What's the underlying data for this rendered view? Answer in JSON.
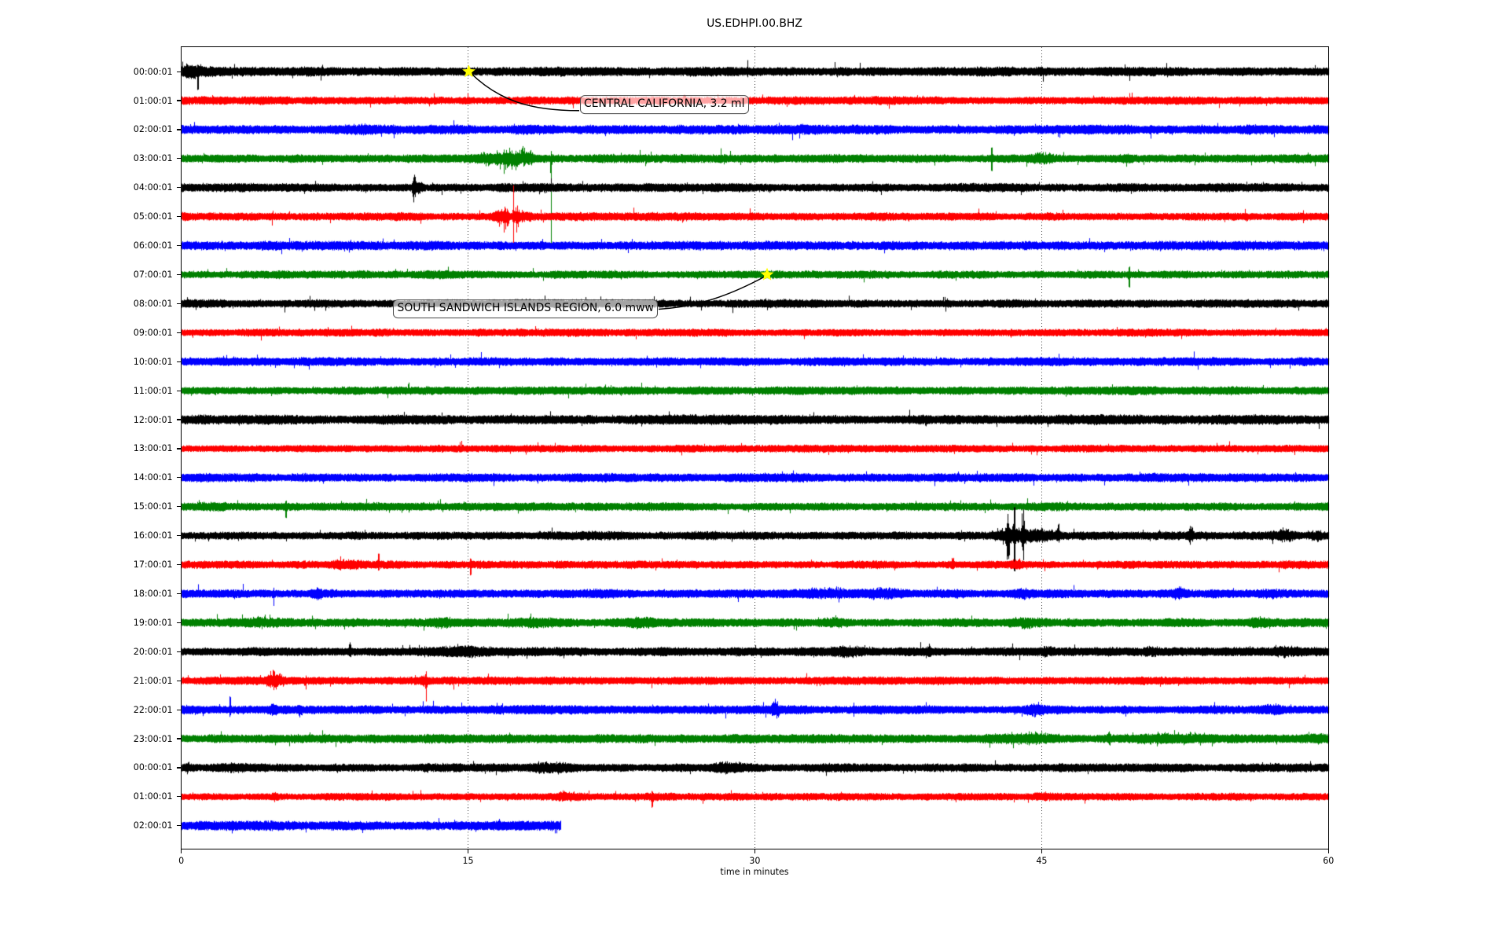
{
  "title": "US.EDHPI.00.BHZ",
  "x_axis": {
    "label": "time in minutes",
    "range_minutes": [
      0,
      60
    ],
    "ticks": [
      0,
      15,
      30,
      45,
      60
    ],
    "grid_minutes": [
      15,
      30,
      45
    ]
  },
  "y_axis": {
    "tick_labels": [
      "00:00:01",
      "01:00:01",
      "02:00:01",
      "03:00:01",
      "04:00:01",
      "05:00:01",
      "06:00:01",
      "07:00:01",
      "08:00:01",
      "09:00:01",
      "10:00:01",
      "11:00:01",
      "12:00:01",
      "13:00:01",
      "14:00:01",
      "15:00:01",
      "16:00:01",
      "17:00:01",
      "18:00:01",
      "19:00:01",
      "20:00:01",
      "21:00:01",
      "22:00:01",
      "23:00:01",
      "00:00:01",
      "01:00:01",
      "02:00:01"
    ]
  },
  "colors": {
    "trace_cycle": [
      "#000000",
      "#ff0000",
      "#0000ff",
      "#008000"
    ],
    "event_star": "#ffff00",
    "grid": "#4d4d4d",
    "frame": "#000000"
  },
  "chart_data": {
    "type": "line",
    "variant": "seismogram-dayplot-helicorder",
    "station_id": "US.EDHPI.00.BHZ",
    "title": "US.EDHPI.00.BHZ",
    "xlabel": "time in minutes",
    "minutes_per_row": 60,
    "xlim": [
      0,
      60
    ],
    "grid": "vertical-dotted",
    "rows": [
      {
        "label": "00:00:01",
        "color": "#000000",
        "extent": 1.0,
        "base_amp": 4.6,
        "events": [
          {
            "t": 0.4,
            "w": 0.5,
            "up": 5,
            "dn": 5
          },
          {
            "t": 0.85,
            "w": 0.02,
            "up": 2,
            "dn": 16
          },
          {
            "t": 29.6,
            "w": 0.02,
            "up": 9,
            "dn": 2
          }
        ]
      },
      {
        "label": "01:00:01",
        "color": "#ff0000",
        "extent": 1.0,
        "base_amp": 4.0,
        "events": [
          {
            "t": 26.3,
            "w": 0.05,
            "up": 6,
            "dn": 2
          }
        ]
      },
      {
        "label": "02:00:01",
        "color": "#0000ff",
        "extent": 1.0,
        "base_amp": 4.6,
        "events": [
          {
            "t": 9.5,
            "w": 1.2,
            "up": 2,
            "dn": 2
          },
          {
            "t": 33.0,
            "w": 0.8,
            "up": 1.5,
            "dn": 1.5
          }
        ]
      },
      {
        "label": "03:00:01",
        "color": "#008000",
        "extent": 1.0,
        "base_amp": 4.2,
        "events": [
          {
            "t": 15.9,
            "w": 0.28,
            "up": 5,
            "dn": 6
          },
          {
            "t": 16.55,
            "w": 0.1,
            "up": 8,
            "dn": 9
          },
          {
            "t": 16.85,
            "w": 0.04,
            "up": 5,
            "dn": 14
          },
          {
            "t": 17.15,
            "w": 0.2,
            "up": 9,
            "dn": 11
          },
          {
            "t": 17.5,
            "w": 0.05,
            "up": 6,
            "dn": 13
          },
          {
            "t": 17.85,
            "w": 0.15,
            "up": 10,
            "dn": 7
          },
          {
            "t": 18.25,
            "w": 0.1,
            "up": 9,
            "dn": 5
          },
          {
            "t": 19.32,
            "w": 0.018,
            "up": 5,
            "dn": 104
          },
          {
            "t": 42.35,
            "w": 0.04,
            "up": 10,
            "dn": 12
          },
          {
            "t": 45.0,
            "w": 0.4,
            "up": 5,
            "dn": 4
          },
          {
            "t": 49.4,
            "w": 0.25,
            "up": 3,
            "dn": 3
          }
        ]
      },
      {
        "label": "04:00:01",
        "color": "#000000",
        "extent": 1.0,
        "base_amp": 4.3,
        "events": [
          {
            "t": 12.15,
            "w": 0.06,
            "up": 16,
            "dn": 17
          },
          {
            "t": 12.4,
            "w": 0.15,
            "up": 5,
            "dn": 4
          }
        ]
      },
      {
        "label": "05:00:01",
        "color": "#ff0000",
        "extent": 1.0,
        "base_amp": 4.0,
        "events": [
          {
            "t": 16.55,
            "w": 0.18,
            "up": 7,
            "dn": 9
          },
          {
            "t": 16.95,
            "w": 0.1,
            "up": 11,
            "dn": 13
          },
          {
            "t": 17.35,
            "w": 0.04,
            "up": 34,
            "dn": 28
          },
          {
            "t": 17.55,
            "w": 0.1,
            "up": 12,
            "dn": 14
          },
          {
            "t": 17.95,
            "w": 0.25,
            "up": 5,
            "dn": 4
          }
        ]
      },
      {
        "label": "06:00:01",
        "color": "#0000ff",
        "extent": 1.0,
        "base_amp": 4.4,
        "events": []
      },
      {
        "label": "07:00:01",
        "color": "#008000",
        "extent": 1.0,
        "base_amp": 3.9,
        "events": [
          {
            "t": 49.55,
            "w": 0.03,
            "up": 6,
            "dn": 12
          }
        ]
      },
      {
        "label": "08:00:01",
        "color": "#000000",
        "extent": 1.0,
        "base_amp": 4.1,
        "events": []
      },
      {
        "label": "09:00:01",
        "color": "#ff0000",
        "extent": 1.0,
        "base_amp": 3.8,
        "events": []
      },
      {
        "label": "10:00:01",
        "color": "#0000ff",
        "extent": 1.0,
        "base_amp": 4.2,
        "events": []
      },
      {
        "label": "11:00:01",
        "color": "#008000",
        "extent": 1.0,
        "base_amp": 4.1,
        "events": []
      },
      {
        "label": "12:00:01",
        "color": "#000000",
        "extent": 1.0,
        "base_amp": 4.8,
        "events": []
      },
      {
        "label": "13:00:01",
        "color": "#ff0000",
        "extent": 1.0,
        "base_amp": 3.7,
        "events": []
      },
      {
        "label": "14:00:01",
        "color": "#0000ff",
        "extent": 1.0,
        "base_amp": 4.3,
        "events": []
      },
      {
        "label": "15:00:01",
        "color": "#008000",
        "extent": 1.0,
        "base_amp": 4.1,
        "events": [
          {
            "t": 5.45,
            "w": 0.03,
            "up": 3,
            "dn": 10
          },
          {
            "t": 1.2,
            "w": 0.8,
            "up": 1.5,
            "dn": 1.5
          }
        ]
      },
      {
        "label": "16:00:01",
        "color": "#000000",
        "extent": 1.0,
        "base_amp": 4.2,
        "events": [
          {
            "t": 43.2,
            "w": 0.05,
            "up": 38,
            "dn": 44
          },
          {
            "t": 43.55,
            "w": 0.04,
            "up": 30,
            "dn": 34
          },
          {
            "t": 44.0,
            "w": 0.05,
            "up": 34,
            "dn": 40
          },
          {
            "t": 43.6,
            "w": 0.7,
            "up": 7,
            "dn": 7
          },
          {
            "t": 45.0,
            "w": 0.45,
            "up": 5,
            "dn": 4
          },
          {
            "t": 45.85,
            "w": 0.05,
            "up": 18,
            "dn": 8
          },
          {
            "t": 52.8,
            "w": 0.1,
            "up": 10,
            "dn": 9
          },
          {
            "t": 57.6,
            "w": 0.35,
            "up": 6,
            "dn": 5
          },
          {
            "t": 59.3,
            "w": 0.3,
            "up": 4,
            "dn": 4
          }
        ]
      },
      {
        "label": "17:00:01",
        "color": "#ff0000",
        "extent": 1.0,
        "base_amp": 3.9,
        "events": [
          {
            "t": 8.6,
            "w": 0.5,
            "up": 4,
            "dn": 3
          },
          {
            "t": 10.3,
            "w": 0.04,
            "up": 9,
            "dn": 3
          },
          {
            "t": 15.1,
            "w": 0.04,
            "up": 3,
            "dn": 9
          },
          {
            "t": 40.3,
            "w": 0.05,
            "up": 12,
            "dn": 4
          },
          {
            "t": 43.7,
            "w": 0.2,
            "up": 4,
            "dn": 3
          }
        ]
      },
      {
        "label": "18:00:01",
        "color": "#0000ff",
        "extent": 1.0,
        "base_amp": 4.3,
        "events": [
          {
            "t": 4.8,
            "w": 0.04,
            "up": 4,
            "dn": 11
          },
          {
            "t": 7.1,
            "w": 0.2,
            "up": 5,
            "dn": 4
          },
          {
            "t": 33.7,
            "w": 0.9,
            "up": 4,
            "dn": 3
          },
          {
            "t": 36.6,
            "w": 0.8,
            "up": 4,
            "dn": 3
          },
          {
            "t": 44.0,
            "w": 0.3,
            "up": 3,
            "dn": 3
          },
          {
            "t": 52.2,
            "w": 0.25,
            "up": 6,
            "dn": 4
          },
          {
            "t": 57.0,
            "w": 0.8,
            "up": 2.5,
            "dn": 2
          }
        ]
      },
      {
        "label": "19:00:01",
        "color": "#008000",
        "extent": 1.0,
        "base_amp": 4.4,
        "events": [
          {
            "t": 4.3,
            "w": 0.9,
            "up": 4,
            "dn": 3
          },
          {
            "t": 13.6,
            "w": 0.4,
            "up": 3,
            "dn": 3
          },
          {
            "t": 18.8,
            "w": 0.7,
            "up": 3,
            "dn": 2.5
          },
          {
            "t": 24.0,
            "w": 0.6,
            "up": 3,
            "dn": 3
          },
          {
            "t": 34.2,
            "w": 0.4,
            "up": 3,
            "dn": 2.5
          },
          {
            "t": 44.1,
            "w": 0.5,
            "up": 3.5,
            "dn": 3
          },
          {
            "t": 56.4,
            "w": 0.4,
            "up": 3,
            "dn": 2.5
          }
        ]
      },
      {
        "label": "20:00:01",
        "color": "#000000",
        "extent": 1.0,
        "base_amp": 4.4,
        "events": [
          {
            "t": 8.8,
            "w": 0.05,
            "up": 8,
            "dn": 3
          },
          {
            "t": 14.6,
            "w": 1.0,
            "up": 4,
            "dn": 3.5
          },
          {
            "t": 35.0,
            "w": 0.8,
            "up": 3.5,
            "dn": 3
          },
          {
            "t": 39.1,
            "w": 0.05,
            "up": 7,
            "dn": 3
          },
          {
            "t": 45.2,
            "w": 0.3,
            "up": 4,
            "dn": 3.5
          },
          {
            "t": 50.6,
            "w": 0.4,
            "up": 3,
            "dn": 3
          },
          {
            "t": 57.7,
            "w": 0.5,
            "up": 4,
            "dn": 3
          }
        ]
      },
      {
        "label": "21:00:01",
        "color": "#ff0000",
        "extent": 1.0,
        "base_amp": 3.9,
        "events": [
          {
            "t": 4.85,
            "w": 0.25,
            "up": 10,
            "dn": 9
          },
          {
            "t": 6.5,
            "w": 0.04,
            "up": 3,
            "dn": 8
          },
          {
            "t": 12.7,
            "w": 0.1,
            "up": 6,
            "dn": 8
          },
          {
            "t": 12.78,
            "w": 0.02,
            "up": 3,
            "dn": 18
          }
        ]
      },
      {
        "label": "22:00:01",
        "color": "#0000ff",
        "extent": 1.0,
        "base_amp": 4.3,
        "events": [
          {
            "t": 2.53,
            "w": 0.025,
            "up": 13,
            "dn": 4
          },
          {
            "t": 4.8,
            "w": 0.12,
            "up": 5,
            "dn": 7
          },
          {
            "t": 6.2,
            "w": 0.08,
            "up": 4,
            "dn": 5
          },
          {
            "t": 31.05,
            "w": 0.12,
            "up": 10,
            "dn": 9
          },
          {
            "t": 44.6,
            "w": 0.3,
            "up": 4,
            "dn": 4
          },
          {
            "t": 57.0,
            "w": 0.5,
            "up": 3,
            "dn": 3
          }
        ]
      },
      {
        "label": "23:00:01",
        "color": "#008000",
        "extent": 1.0,
        "base_amp": 4.3,
        "events": [
          {
            "t": 44.3,
            "w": 1.2,
            "up": 4,
            "dn": 3.5
          },
          {
            "t": 48.5,
            "w": 0.05,
            "up": 14,
            "dn": 4
          },
          {
            "t": 51.8,
            "w": 1.3,
            "up": 4,
            "dn": 3.5
          },
          {
            "t": 59.3,
            "w": 0.5,
            "up": 4,
            "dn": 3
          }
        ]
      },
      {
        "label": "00:00:01",
        "color": "#000000",
        "extent": 1.0,
        "base_amp": 4.2,
        "events": [
          {
            "t": 0.3,
            "w": 0.05,
            "up": 6,
            "dn": 4
          },
          {
            "t": 2.6,
            "w": 0.5,
            "up": 4,
            "dn": 3.5
          },
          {
            "t": 19.2,
            "w": 0.7,
            "up": 4.5,
            "dn": 4
          },
          {
            "t": 28.5,
            "w": 0.5,
            "up": 3.5,
            "dn": 3
          }
        ]
      },
      {
        "label": "01:00:01",
        "color": "#ff0000",
        "extent": 1.0,
        "base_amp": 3.7,
        "events": [
          {
            "t": 4.9,
            "w": 0.1,
            "up": 4,
            "dn": 4
          },
          {
            "t": 20.1,
            "w": 0.5,
            "up": 3,
            "dn": 3
          },
          {
            "t": 24.6,
            "w": 0.04,
            "up": 3,
            "dn": 9
          },
          {
            "t": 45.3,
            "w": 0.5,
            "up": 3,
            "dn": 2.5
          }
        ]
      },
      {
        "label": "02:00:01",
        "color": "#0000ff",
        "extent": 0.331,
        "base_amp": 4.7,
        "events": []
      }
    ],
    "annotations": [
      {
        "label": "CENTRAL CALIFORNIA, 3.2 ml",
        "row": 0,
        "t_minutes": 15.04
      },
      {
        "label": "SOUTH SANDWICH ISLANDS REGION, 6.0 mww",
        "row": 7,
        "t_minutes": 30.64
      }
    ]
  }
}
